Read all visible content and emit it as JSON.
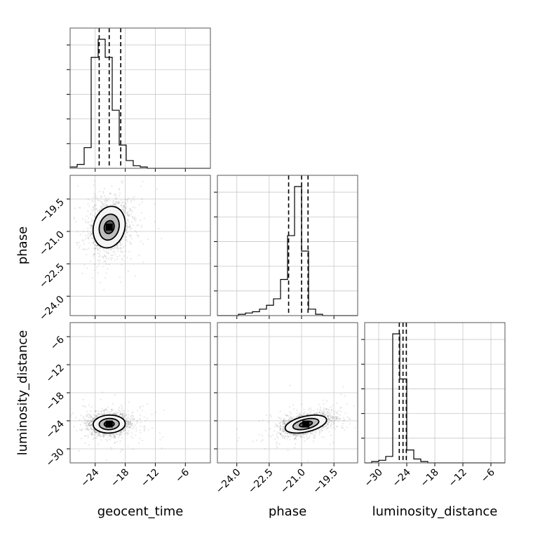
{
  "chart_data": {
    "type": "corner",
    "parameters": [
      "geocent_time",
      "phase",
      "luminosity_distance"
    ],
    "axis_labels": {
      "geocent_time": "geocent_time",
      "phase": "phase",
      "luminosity_distance": "luminosity_distance"
    },
    "ticks": {
      "geocent_time": {
        "values": [
          -24,
          -18,
          -12,
          -6
        ],
        "labels": [
          "−24",
          "−18",
          "−12",
          "−6"
        ]
      },
      "phase": {
        "values": [
          -24.0,
          -22.5,
          -21.0,
          -19.5
        ],
        "labels": [
          "−24.0",
          "−22.5",
          "−21.0",
          "−19.5"
        ]
      },
      "luminosity_distance": {
        "values": [
          -30,
          -24,
          -18,
          -12,
          -6
        ],
        "labels": [
          "−30",
          "−24",
          "−18",
          "−12",
          "−6"
        ]
      }
    },
    "ranges": {
      "geocent_time": [
        -29,
        -1
      ],
      "phase": [
        -24.9,
        -18.4
      ],
      "luminosity_distance": [
        -33,
        -3
      ]
    },
    "grid": true,
    "marginals": [
      {
        "parameter": "geocent_time",
        "bin_edges": [
          -29,
          -27.6,
          -26.2,
          -24.8,
          -23.4,
          -22,
          -20.6,
          -19.2,
          -17.8,
          -16.4,
          -15,
          -13.6,
          -12.2,
          -10.8,
          -9.4,
          -8,
          -6.6,
          -5.2,
          -3.8,
          -2.4,
          -1
        ],
        "counts": [
          0.01,
          0.03,
          0.16,
          0.86,
          1.0,
          0.86,
          0.45,
          0.18,
          0.06,
          0.02,
          0.01,
          0,
          0,
          0,
          0,
          0,
          0,
          0,
          0,
          0
        ],
        "quantiles": [
          -23.2,
          -21.2,
          -18.9
        ]
      },
      {
        "parameter": "phase",
        "bin_edges": [
          -24.9,
          -24.575,
          -24.25,
          -23.925,
          -23.6,
          -23.275,
          -22.95,
          -22.625,
          -22.3,
          -21.975,
          -21.65,
          -21.325,
          -21.0,
          -20.675,
          -20.35,
          -20.025,
          -19.7,
          -19.375,
          -19.05,
          -18.725,
          -18.4
        ],
        "counts": [
          0,
          0,
          0,
          0.01,
          0.02,
          0.03,
          0.05,
          0.08,
          0.13,
          0.28,
          0.62,
          1.0,
          0.5,
          0.05,
          0.01,
          0,
          0,
          0,
          0,
          0
        ],
        "quantiles": [
          -21.6,
          -21.0,
          -20.7
        ]
      },
      {
        "parameter": "luminosity_distance",
        "bin_edges": [
          -33,
          -31.5,
          -30,
          -28.5,
          -27,
          -25.5,
          -24,
          -22.5,
          -21,
          -19.5,
          -18,
          -16.5,
          -15,
          -13.5,
          -12,
          -10.5,
          -9,
          -7.5,
          -6,
          -4.5,
          -3
        ],
        "counts": [
          0.0,
          0.01,
          0.02,
          0.05,
          1.0,
          0.65,
          0.1,
          0.03,
          0.01,
          0,
          0,
          0,
          0,
          0,
          0,
          0,
          0,
          0,
          0,
          0
        ],
        "quantiles": [
          -25.6,
          -24.8,
          -24.1
        ]
      }
    ],
    "joint": [
      {
        "x": "geocent_time",
        "y": "phase",
        "center": [
          -21.2,
          -20.8
        ],
        "spread": [
          2.0,
          0.6
        ],
        "correlation": 0.15,
        "contour_levels_sigma": [
          0.5,
          1.0,
          1.6
        ]
      },
      {
        "x": "geocent_time",
        "y": "luminosity_distance",
        "center": [
          -21.2,
          -24.7
        ],
        "spread": [
          2.0,
          1.2
        ],
        "correlation": 0.05,
        "contour_levels_sigma": [
          0.5,
          1.0,
          1.6
        ]
      },
      {
        "x": "phase",
        "y": "luminosity_distance",
        "center": [
          -20.8,
          -24.7
        ],
        "spread": [
          0.6,
          1.2
        ],
        "correlation": 0.45,
        "contour_levels_sigma": [
          0.5,
          1.0,
          1.6
        ]
      }
    ]
  }
}
